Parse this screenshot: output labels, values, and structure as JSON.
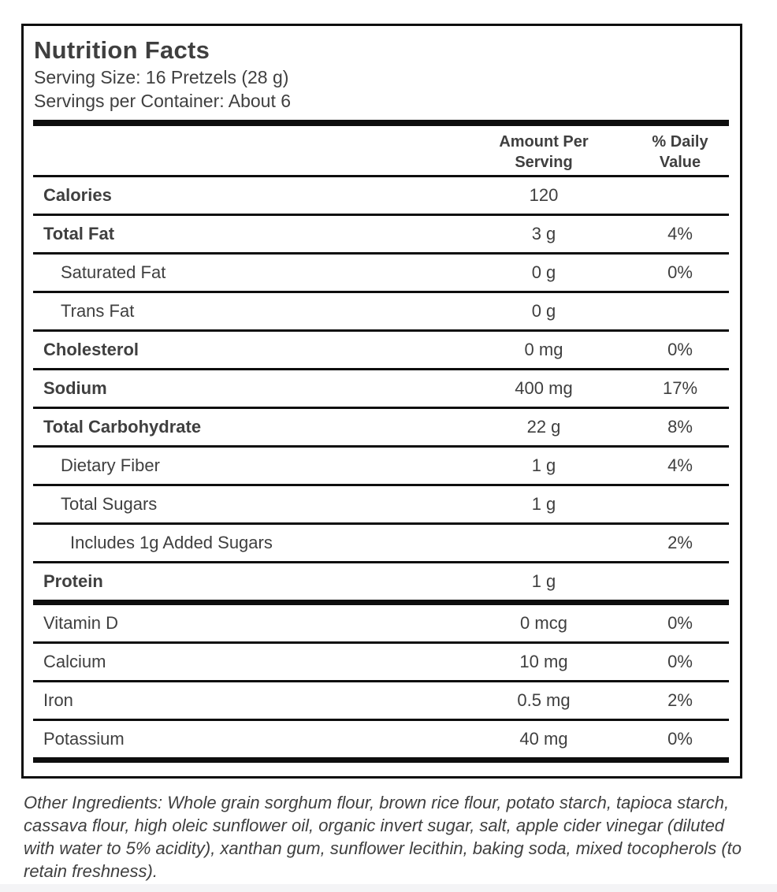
{
  "label": {
    "title": "Nutrition Facts",
    "serving_size": "Serving Size: 16 Pretzels (28 g)",
    "servings_per_container": "Servings per Container: About 6",
    "columns": {
      "amount": "Amount Per Serving",
      "daily_value": "% Daily Value"
    },
    "rows": [
      {
        "name": "Calories",
        "amount": "120",
        "dv": ""
      },
      {
        "name": "Total Fat",
        "amount": "3 g",
        "dv": "4%"
      },
      {
        "name": "Saturated Fat",
        "amount": "0 g",
        "dv": "0%"
      },
      {
        "name": "Trans Fat",
        "amount": "0 g",
        "dv": ""
      },
      {
        "name": "Cholesterol",
        "amount": "0 mg",
        "dv": "0%"
      },
      {
        "name": "Sodium",
        "amount": "400 mg",
        "dv": "17%"
      },
      {
        "name": "Total Carbohydrate",
        "amount": "22 g",
        "dv": "8%"
      },
      {
        "name": "Dietary Fiber",
        "amount": "1 g",
        "dv": "4%"
      },
      {
        "name": "Total Sugars",
        "amount": "1 g",
        "dv": ""
      },
      {
        "name": "Includes 1g Added Sugars",
        "amount": "",
        "dv": "2%"
      },
      {
        "name": "Protein",
        "amount": "1 g",
        "dv": ""
      },
      {
        "name": "Vitamin D",
        "amount": "0 mcg",
        "dv": "0%"
      },
      {
        "name": "Calcium",
        "amount": "10 mg",
        "dv": "0%"
      },
      {
        "name": "Iron",
        "amount": "0.5 mg",
        "dv": "2%"
      },
      {
        "name": "Potassium",
        "amount": "40 mg",
        "dv": "0%"
      }
    ]
  },
  "ingredients": "Other Ingredients: Whole grain sorghum flour, brown rice flour, potato starch, tapioca starch, cassava flour, high oleic sunflower oil, organic invert sugar, salt, apple cider vinegar (diluted with water to 5% acidity), xanthan gum, sunflower lecithin, baking soda, mixed tocopherols (to retain freshness).",
  "colors": {
    "text": "#3f3f3f",
    "line": "#0e0e0e",
    "background": "#ffffff"
  }
}
